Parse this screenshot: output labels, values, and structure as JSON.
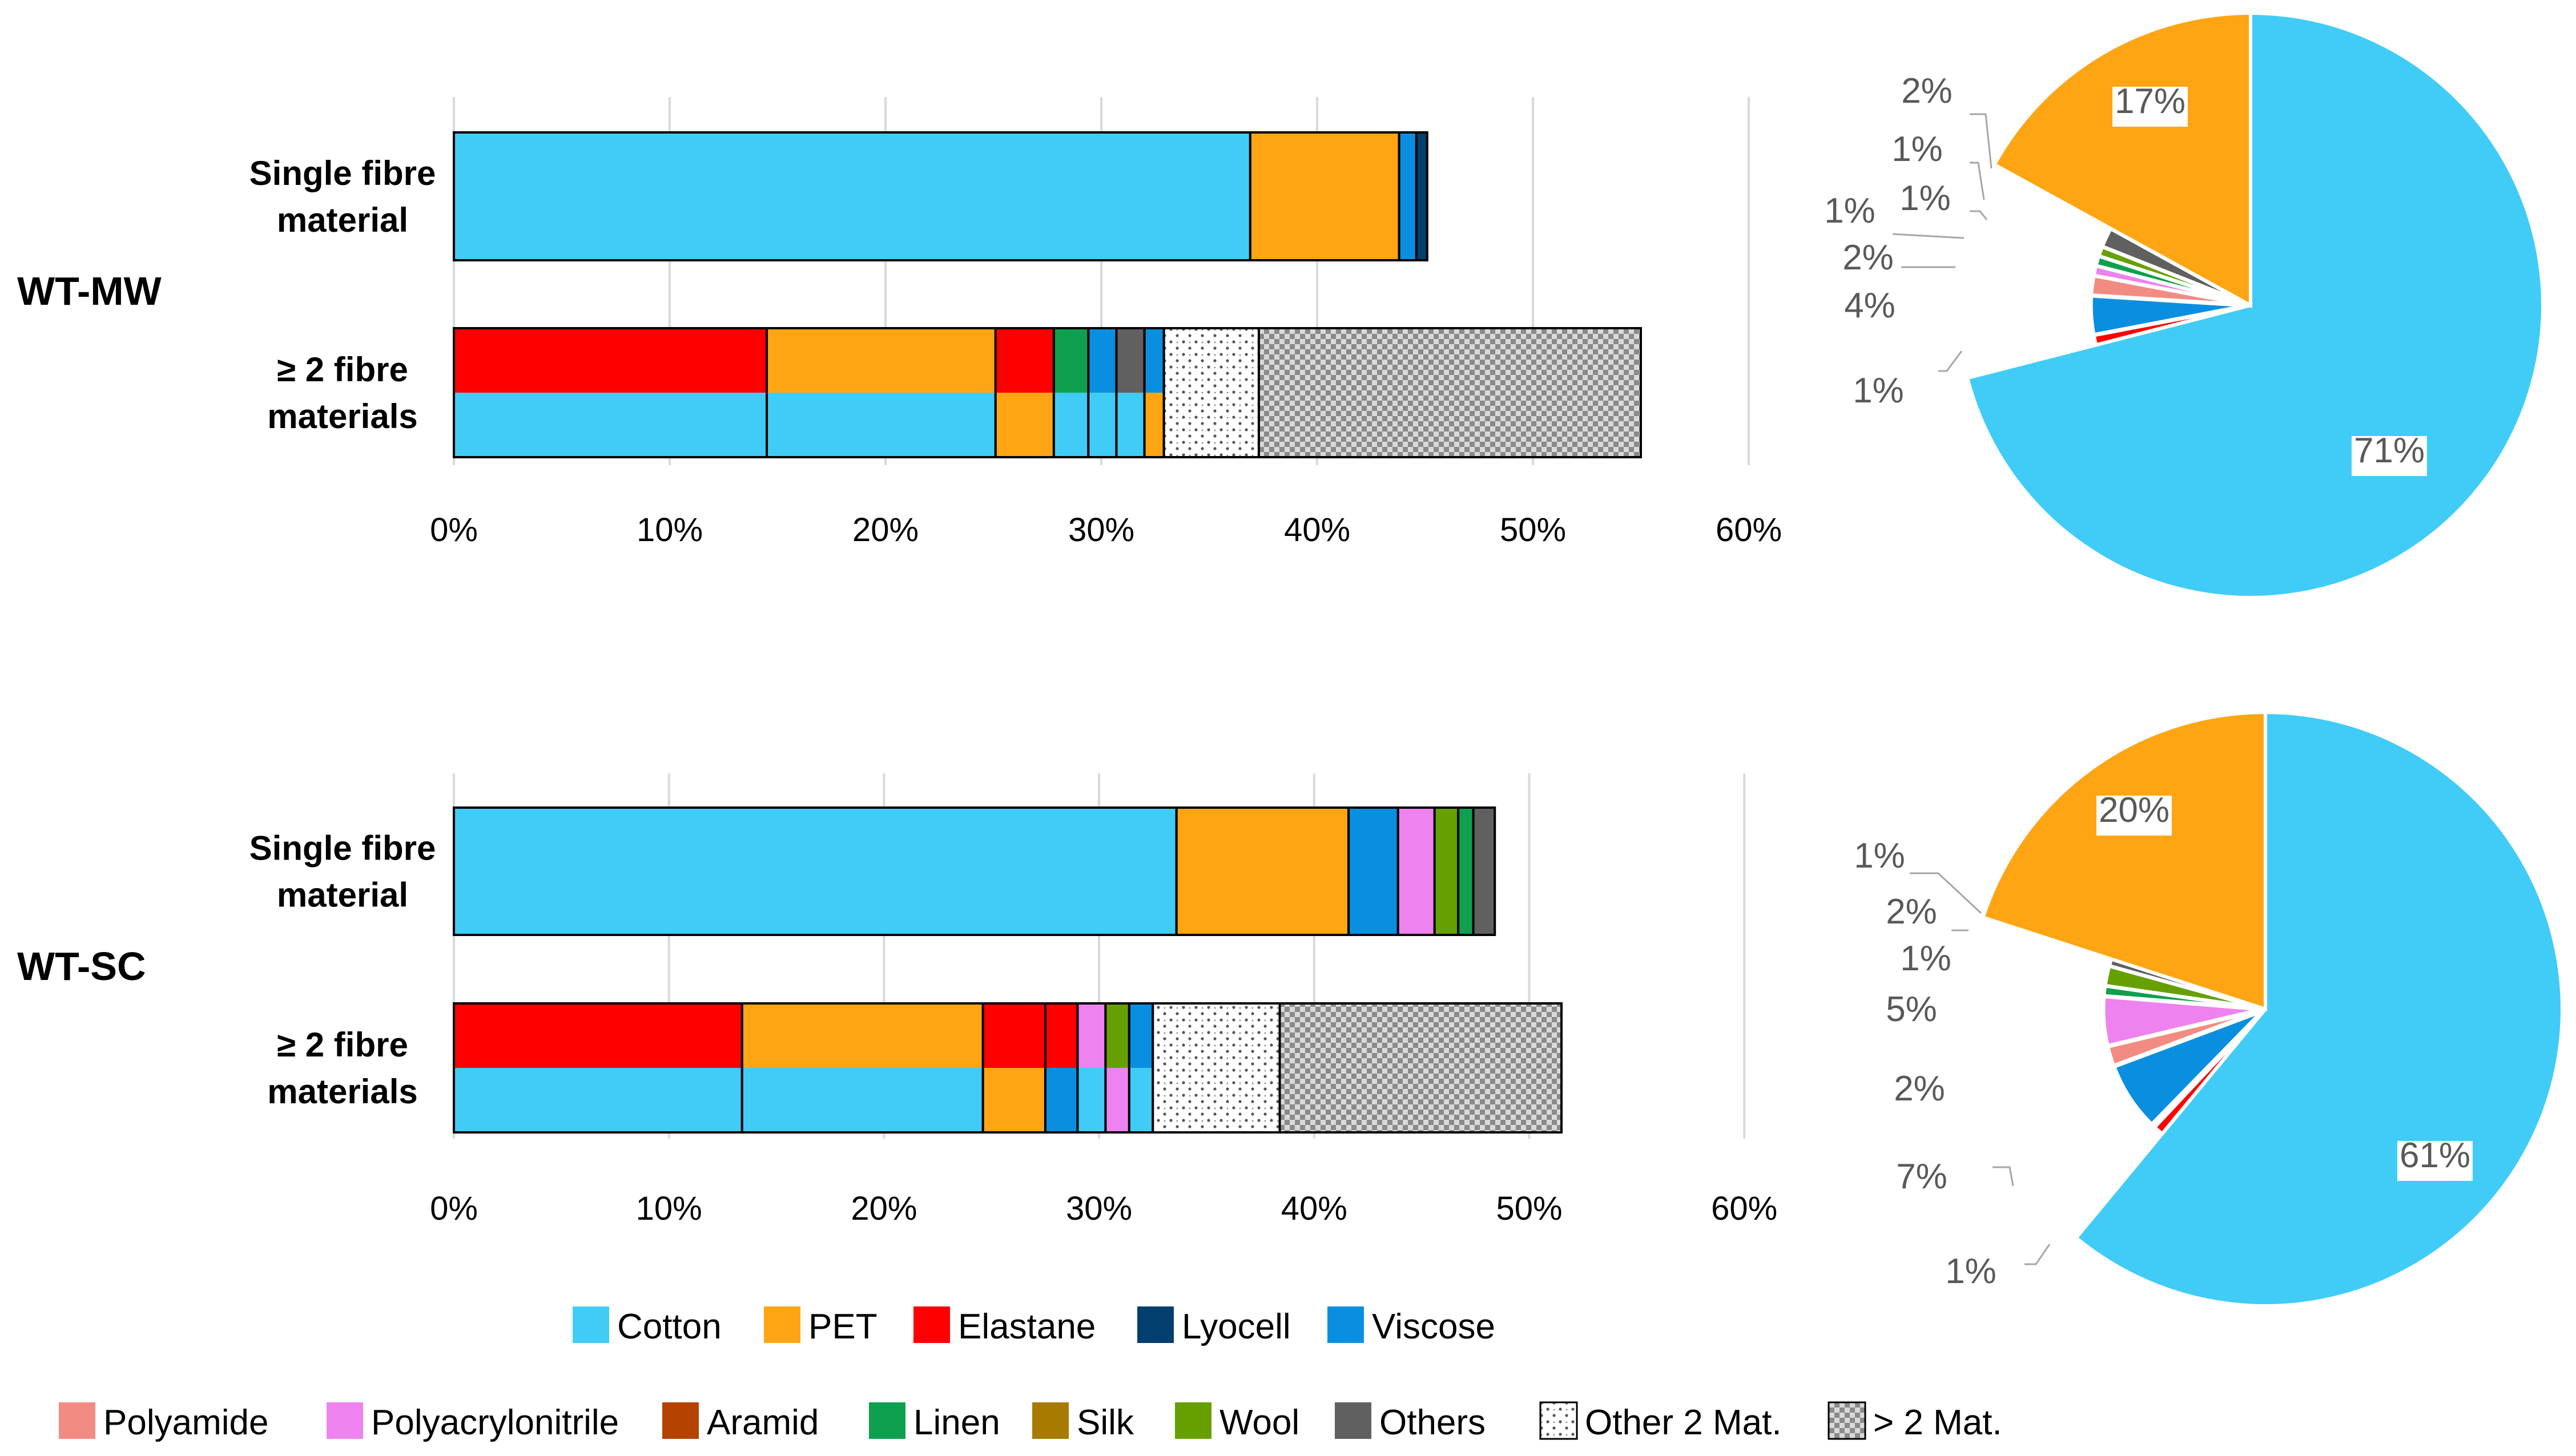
{
  "colors": {
    "Cotton": "#41CCF8",
    "PET": "#FFA514",
    "Elastane": "#FF0000",
    "Lyocell": "#003F6E",
    "Viscose": "#0A8FE0",
    "Polyamide": "#F28B82",
    "Polyacrylonitrile": "#EE82EE",
    "Aramid": "#B54300",
    "Linen": "#0EA04E",
    "Silk": "#A87A00",
    "Wool": "#66A000",
    "Others": "#606060",
    "Other 2 Mat.": "pattern-dots",
    "> 2 Mat.": "pattern-checker"
  },
  "chart_data": [
    {
      "type": "bar",
      "orientation": "horizontal-stacked",
      "panel": "WT-MW",
      "xlim": [
        0,
        60
      ],
      "xticks": [
        "0%",
        "10%",
        "20%",
        "30%",
        "40%",
        "50%",
        "60%"
      ],
      "categories": [
        {
          "label": "Single fibre material",
          "label_lines": [
            "Single fibre",
            "material"
          ],
          "segments": [
            {
              "name": "Cotton",
              "value": 36.9
            },
            {
              "name": "PET",
              "value": 6.9
            },
            {
              "name": "Viscose",
              "value": 0.8
            },
            {
              "name": "Lyocell",
              "value": 0.5
            }
          ]
        },
        {
          "label": "≥ 2 fibre materials",
          "label_lines": [
            "≥ 2 fibre",
            "materials"
          ],
          "groups": [
            {
              "top": "Elastane",
              "bottom": "Cotton",
              "value": 14.5
            },
            {
              "top": "PET",
              "bottom": "Cotton",
              "value": 10.6
            },
            {
              "top": "Elastane",
              "bottom": "PET",
              "value": 2.7
            },
            {
              "top": "Linen",
              "bottom": "Cotton",
              "value": 1.6
            },
            {
              "top": "Viscose",
              "bottom": "Cotton",
              "value": 1.3
            },
            {
              "top": "Others",
              "bottom": "Cotton",
              "value": 1.3
            },
            {
              "top": "Viscose",
              "bottom": "PET",
              "value": 0.9
            },
            {
              "full": "Other 2 Mat.",
              "value": 4.4
            },
            {
              "full": "> 2 Mat.",
              "value": 17.7
            }
          ]
        }
      ]
    },
    {
      "type": "pie",
      "panel": "WT-MW",
      "slices": [
        {
          "name": "Cotton",
          "value": 71,
          "label": "71%"
        },
        {
          "name": "Elastane",
          "value": 1,
          "label": "1%"
        },
        {
          "name": "Viscose",
          "value": 4,
          "label": "4%"
        },
        {
          "name": "Polyamide",
          "value": 2,
          "label": "2%"
        },
        {
          "name": "Polyacrylonitrile",
          "value": 1,
          "label": "1%"
        },
        {
          "name": "Linen",
          "value": 1,
          "label": "1%"
        },
        {
          "name": "Wool",
          "value": 1,
          "label": "1%"
        },
        {
          "name": "Others",
          "value": 2,
          "label": "2%"
        },
        {
          "name": "PET",
          "value": 17,
          "label": "17%"
        }
      ]
    },
    {
      "type": "bar",
      "orientation": "horizontal-stacked",
      "panel": "WT-SC",
      "xlim": [
        0,
        60
      ],
      "xticks": [
        "0%",
        "10%",
        "20%",
        "30%",
        "40%",
        "50%",
        "60%"
      ],
      "categories": [
        {
          "label": "Single fibre material",
          "label_lines": [
            "Single fibre",
            "material"
          ],
          "segments": [
            {
              "name": "Cotton",
              "value": 33.6
            },
            {
              "name": "PET",
              "value": 8.0
            },
            {
              "name": "Viscose",
              "value": 2.3
            },
            {
              "name": "Polyacrylonitrile",
              "value": 1.7
            },
            {
              "name": "Wool",
              "value": 1.1
            },
            {
              "name": "Linen",
              "value": 0.7
            },
            {
              "name": "Others",
              "value": 1.0
            }
          ]
        },
        {
          "label": "≥ 2 fibre materials",
          "label_lines": [
            "≥ 2 fibre",
            "materials"
          ],
          "groups": [
            {
              "top": "Elastane",
              "bottom": "Cotton",
              "value": 13.4
            },
            {
              "top": "PET",
              "bottom": "Cotton",
              "value": 11.2
            },
            {
              "top": "Elastane",
              "bottom": "PET",
              "value": 2.9
            },
            {
              "top": "Elastane",
              "bottom": "Viscose",
              "value": 1.5
            },
            {
              "top": "Polyacrylonitrile",
              "bottom": "Cotton",
              "value": 1.3
            },
            {
              "top": "Wool",
              "bottom": "Polyacrylonitrile",
              "value": 1.1
            },
            {
              "top": "Viscose",
              "bottom": "Cotton",
              "value": 1.1
            },
            {
              "full": "Other 2 Mat.",
              "value": 5.9
            },
            {
              "full": "> 2 Mat.",
              "value": 13.1
            }
          ]
        }
      ]
    },
    {
      "type": "pie",
      "panel": "WT-SC",
      "slices": [
        {
          "name": "Cotton",
          "value": 61,
          "label": "61%"
        },
        {
          "name": "Elastane",
          "value": 1,
          "label": "1%"
        },
        {
          "name": "Lyocell",
          "value": 0.3,
          "label": ""
        },
        {
          "name": "Viscose",
          "value": 7,
          "label": "7%"
        },
        {
          "name": "Polyamide",
          "value": 2,
          "label": "2%"
        },
        {
          "name": "Polyacrylonitrile",
          "value": 5,
          "label": "5%"
        },
        {
          "name": "Linen",
          "value": 1,
          "label": "1%"
        },
        {
          "name": "Wool",
          "value": 2,
          "label": "2%"
        },
        {
          "name": "Others",
          "value": 0.7,
          "label": "1%"
        },
        {
          "name": "PET",
          "value": 20,
          "label": "20%"
        }
      ]
    }
  ],
  "legend": {
    "row1": [
      "Cotton",
      "PET",
      "Elastane",
      "Lyocell",
      "Viscose"
    ],
    "row2": [
      "Polyamide",
      "Polyacrylonitrile",
      "Aramid",
      "Linen",
      "Silk",
      "Wool",
      "Others",
      "Other 2 Mat.",
      "> 2 Mat."
    ]
  }
}
